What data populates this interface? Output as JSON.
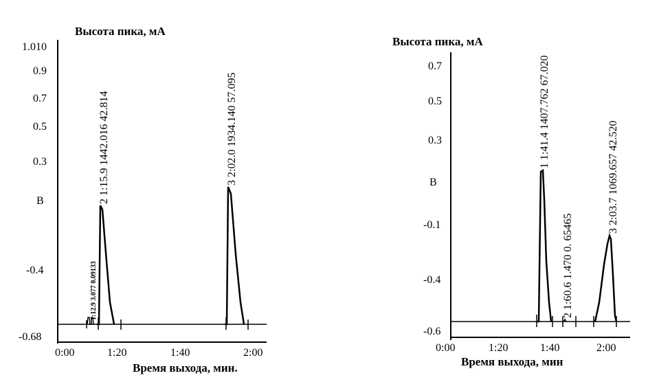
{
  "chart_data": [
    {
      "type": "line",
      "ylabel": "Высота пика, мА",
      "xlabel": "Время выхода, мин.",
      "y_ticks": [
        "1.010",
        "0.9",
        "0.7",
        "0.5",
        "0.3",
        "B",
        "-0.4",
        "-0.68"
      ],
      "x_ticks": [
        "0:00",
        "1:20",
        "1:40",
        "2:00"
      ],
      "peak_labels": [
        {
          "text": "1:12.9  3.077  0.09133",
          "small": true
        },
        {
          "text": "2 1:15.9 1442.016  42.814",
          "small": false
        },
        {
          "text": "3 2:02.0 1934.140  57.095",
          "small": false
        }
      ]
    },
    {
      "type": "line",
      "ylabel": "Высота пика, мА",
      "xlabel": "Время выхода, мин",
      "y_ticks": [
        "0.7",
        "0.5",
        "0.3",
        "B",
        "-0.1",
        "-0.4",
        "-0.6"
      ],
      "x_ticks": [
        "0:00",
        "1:20",
        "1:40",
        "2:00"
      ],
      "peak_labels": [
        {
          "text": "1 1:41.4 1407.762  67.020",
          "small": false
        },
        {
          "text": "2 1:60.6 1.470 0. 65465",
          "small": false
        },
        {
          "text": "3 2:03.7 1069.657  42.520",
          "small": false
        }
      ]
    }
  ]
}
